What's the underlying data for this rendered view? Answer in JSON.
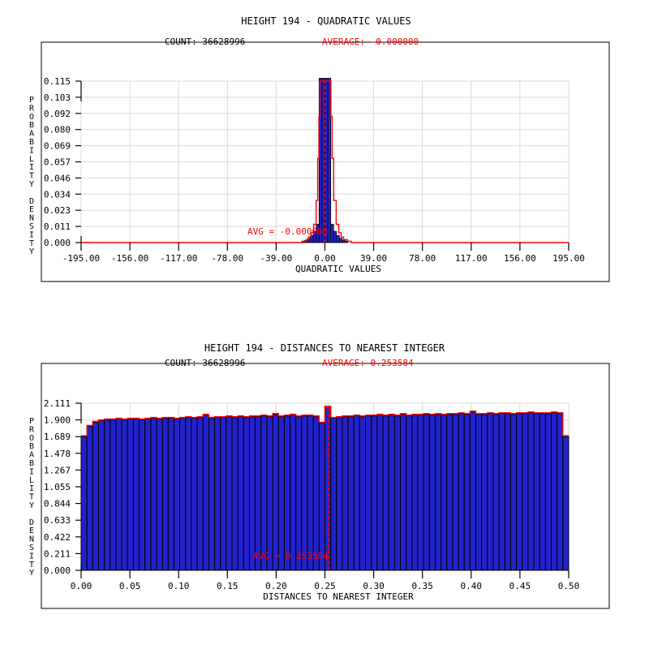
{
  "colors": {
    "bar_blue": "#2222CC",
    "curve_red": "#FF0000",
    "grid_gray": "#D9D9D9",
    "frame_black": "#000000",
    "background": "#FFFFFF"
  },
  "chart_data": [
    {
      "type": "bar",
      "title": "HEIGHT 194 - QUADRATIC VALUES",
      "count_label": "COUNT: 36628996",
      "average_label": "AVERAGE: -0.000000",
      "avg_annotation": "AVG = -0.000000",
      "average": 0,
      "xlabel": "QUADRATIC VALUES",
      "ylabel": "PROBABILITY DENSITY",
      "xlim": [
        -195,
        195
      ],
      "ylim": [
        0,
        0.115
      ],
      "grid": true,
      "x_ticks": [
        "-195.00",
        "-156.00",
        "-117.00",
        "-78.00",
        "-39.00",
        "0.00",
        "39.00",
        "78.00",
        "117.00",
        "156.00",
        "195.00"
      ],
      "y_ticks": [
        "0.115",
        "0.103",
        "0.092",
        "0.080",
        "0.069",
        "0.057",
        "0.046",
        "0.034",
        "0.023",
        "0.011",
        "0.000"
      ],
      "bin_width": 2.3,
      "bins": [
        [
          -17.3,
          0.001
        ],
        [
          -15.0,
          0.0015
        ],
        [
          -12.7,
          0.003
        ],
        [
          -10.4,
          0.005
        ],
        [
          -8.1,
          0.008
        ],
        [
          -5.8,
          0.013
        ],
        [
          -3.5,
          0.117
        ],
        [
          -1.2,
          0.117
        ],
        [
          1.2,
          0.117
        ],
        [
          3.5,
          0.117
        ],
        [
          5.8,
          0.013
        ],
        [
          8.1,
          0.008
        ],
        [
          10.4,
          0.005
        ],
        [
          12.7,
          0.003
        ],
        [
          15.0,
          0.0015
        ],
        [
          17.3,
          0.001
        ]
      ],
      "red_curve": [
        [
          -195,
          0
        ],
        [
          -21,
          0
        ],
        [
          -18,
          0.001
        ],
        [
          -15,
          0.002
        ],
        [
          -13,
          0.004
        ],
        [
          -11,
          0.007
        ],
        [
          -9,
          0.013
        ],
        [
          -7,
          0.03
        ],
        [
          -5.8,
          0.06
        ],
        [
          -4.8,
          0.09
        ],
        [
          -4,
          0.115
        ],
        [
          4,
          0.115
        ],
        [
          4.8,
          0.09
        ],
        [
          5.8,
          0.06
        ],
        [
          7,
          0.03
        ],
        [
          9,
          0.013
        ],
        [
          11,
          0.007
        ],
        [
          13,
          0.004
        ],
        [
          15,
          0.002
        ],
        [
          18,
          0.001
        ],
        [
          21,
          0
        ],
        [
          195,
          0
        ]
      ]
    },
    {
      "type": "bar",
      "title": "HEIGHT 194 - DISTANCES TO NEAREST INTEGER",
      "count_label": "COUNT: 36628996",
      "average_label": "AVERAGE: 0.253584",
      "avg_annotation": "AVG = 0.253584",
      "average": 0.253584,
      "xlabel": "DISTANCES TO NEAREST INTEGER",
      "ylabel": "PROBABILITY DENSITY",
      "xlim": [
        0,
        0.5
      ],
      "ylim": [
        0,
        2.111
      ],
      "grid": true,
      "x_ticks": [
        "0.00",
        "0.05",
        "0.10",
        "0.15",
        "0.20",
        "0.25",
        "0.30",
        "0.35",
        "0.40",
        "0.45",
        "0.50"
      ],
      "y_ticks": [
        "2.111",
        "1.900",
        "1.689",
        "1.478",
        "1.267",
        "1.055",
        "0.844",
        "0.633",
        "0.422",
        "0.211",
        "0.000"
      ],
      "bin_width": 0.005952,
      "values": [
        1.69,
        1.82,
        1.87,
        1.89,
        1.9,
        1.9,
        1.91,
        1.9,
        1.91,
        1.91,
        1.9,
        1.91,
        1.92,
        1.91,
        1.92,
        1.92,
        1.91,
        1.92,
        1.93,
        1.92,
        1.93,
        1.96,
        1.92,
        1.93,
        1.93,
        1.94,
        1.93,
        1.94,
        1.93,
        1.94,
        1.94,
        1.95,
        1.94,
        1.97,
        1.94,
        1.95,
        1.96,
        1.94,
        1.95,
        1.95,
        1.94,
        1.86,
        2.06,
        1.92,
        1.93,
        1.94,
        1.94,
        1.95,
        1.94,
        1.95,
        1.95,
        1.96,
        1.95,
        1.96,
        1.95,
        1.97,
        1.95,
        1.96,
        1.96,
        1.97,
        1.96,
        1.97,
        1.96,
        1.97,
        1.97,
        1.98,
        1.97,
        2.0,
        1.97,
        1.97,
        1.98,
        1.97,
        1.98,
        1.98,
        1.97,
        1.98,
        1.98,
        1.99,
        1.98,
        1.98,
        1.98,
        1.99,
        1.98,
        1.69
      ]
    }
  ]
}
